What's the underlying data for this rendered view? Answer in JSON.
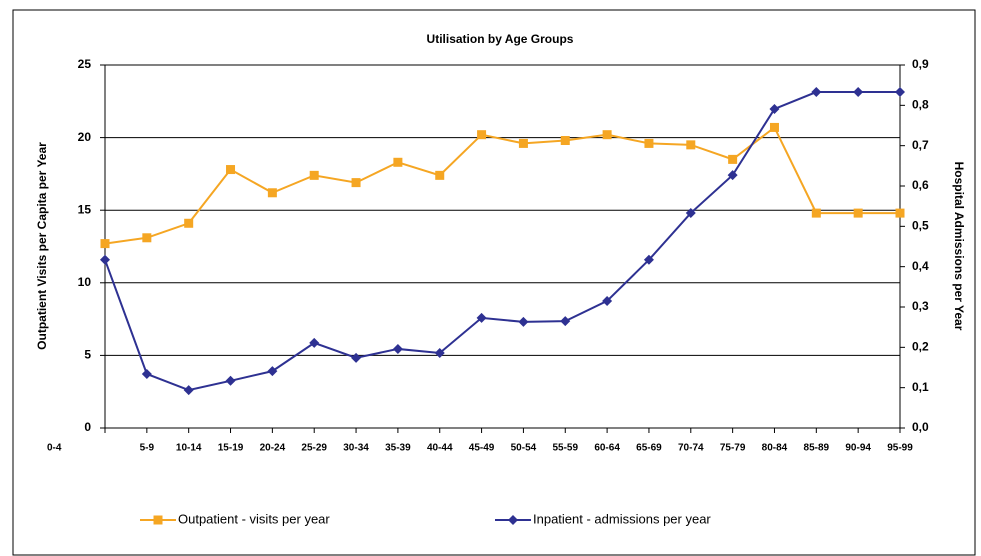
{
  "chart_data": {
    "type": "line",
    "title": "Utilisation by Age Groups",
    "ylabel": "Outpatient Visits per Capita per Year",
    "y2label": "Hospital Admissions per Year",
    "categories": [
      "0-4",
      "5-9",
      "10-14",
      "15-19",
      "20-24",
      "25-29",
      "30-34",
      "35-39",
      "40-44",
      "45-49",
      "50-54",
      "55-59",
      "60-64",
      "65-69",
      "70-74",
      "75-79",
      "80-84",
      "85-89",
      "90-94",
      "95-99"
    ],
    "series": [
      {
        "name": "Outpatient - visits per year",
        "color": "#f5a623",
        "marker": "square",
        "values": [
          12.7,
          13.1,
          14.1,
          17.8,
          16.2,
          17.4,
          16.9,
          18.3,
          17.4,
          20.2,
          19.6,
          19.8,
          20.2,
          19.6,
          19.5,
          18.5,
          20.7,
          14.8,
          14.8,
          14.8
        ]
      },
      {
        "name": "Inpatient - admissions per year",
        "color": "#2e3192",
        "marker": "diamond",
        "axis": "y2",
        "values": [
          0.417,
          0.134,
          0.094,
          0.117,
          0.141,
          0.211,
          0.174,
          0.196,
          0.186,
          0.273,
          0.263,
          0.265,
          0.315,
          0.417,
          0.533,
          0.627,
          0.791,
          0.833,
          0.833,
          0.833
        ]
      }
    ],
    "ylim": [
      0,
      25
    ],
    "yticks": [
      0,
      5,
      10,
      15,
      20,
      25
    ],
    "y2lim": [
      0,
      0.9
    ],
    "y2ticks": [
      {
        "value": 0,
        "label": "0,0"
      },
      {
        "value": 0.1,
        "label": "0,1"
      },
      {
        "value": 0.2,
        "label": "0,2"
      },
      {
        "value": 0.3,
        "label": "0,3"
      },
      {
        "value": 0.4,
        "label": "0,4"
      },
      {
        "value": 0.5,
        "label": "0,5"
      },
      {
        "value": 0.6,
        "label": "0,6"
      },
      {
        "value": 0.7,
        "label": "0,7"
      },
      {
        "value": 0.8,
        "label": "0,8"
      },
      {
        "value": 0.9,
        "label": "0,9"
      }
    ],
    "grid": true,
    "legend": "bottom"
  }
}
